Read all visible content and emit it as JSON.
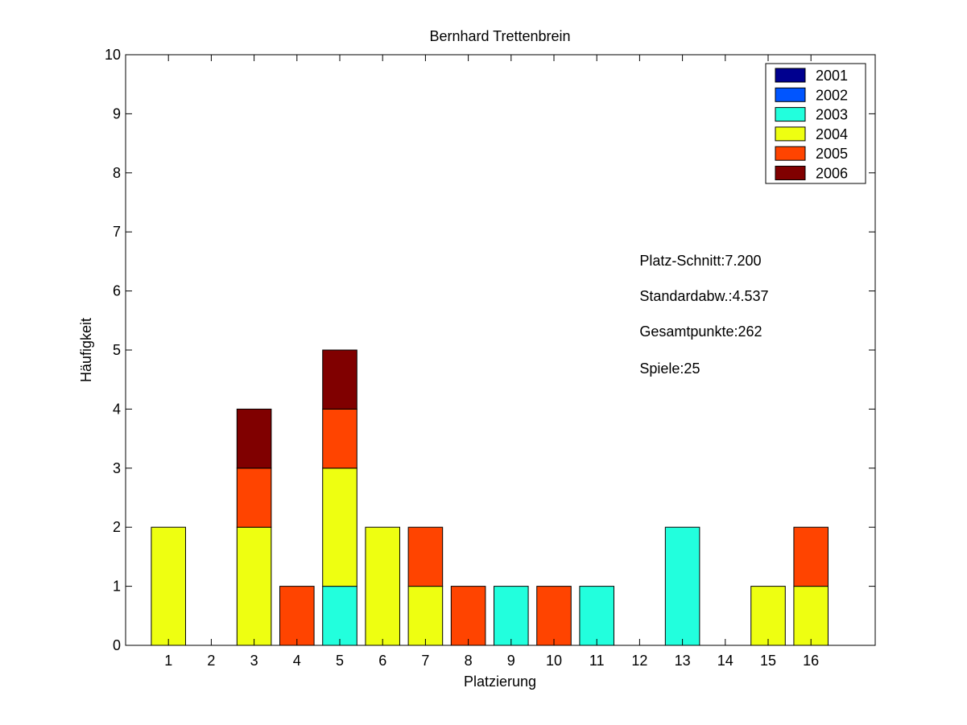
{
  "chart_data": {
    "type": "bar",
    "stacked": true,
    "title": "Bernhard Trettenbrein",
    "xlabel": "Platzierung",
    "ylabel": "Häufigkeit",
    "categories": [
      "1",
      "2",
      "3",
      "4",
      "5",
      "6",
      "7",
      "8",
      "9",
      "10",
      "11",
      "12",
      "13",
      "14",
      "15",
      "16"
    ],
    "xlim": [
      0,
      17.5
    ],
    "ylim": [
      0,
      10
    ],
    "yticks": [
      0,
      1,
      2,
      3,
      4,
      5,
      6,
      7,
      8,
      9,
      10
    ],
    "grid": false,
    "legend_position": "top-right",
    "series": [
      {
        "name": "2001",
        "color": "#00008f",
        "values": [
          0,
          0,
          0,
          0,
          0,
          0,
          0,
          0,
          0,
          0,
          0,
          0,
          0,
          0,
          0,
          0
        ]
      },
      {
        "name": "2002",
        "color": "#0055ff",
        "values": [
          0,
          0,
          0,
          0,
          0,
          0,
          0,
          0,
          0,
          0,
          0,
          0,
          0,
          0,
          0,
          0
        ]
      },
      {
        "name": "2003",
        "color": "#22ffdd",
        "values": [
          0,
          0,
          0,
          0,
          1,
          0,
          0,
          0,
          1,
          0,
          1,
          0,
          2,
          0,
          0,
          0
        ]
      },
      {
        "name": "2004",
        "color": "#eeff11",
        "values": [
          2,
          0,
          2,
          0,
          2,
          2,
          1,
          0,
          0,
          0,
          0,
          0,
          0,
          0,
          1,
          1
        ]
      },
      {
        "name": "2005",
        "color": "#ff4400",
        "values": [
          0,
          0,
          1,
          1,
          1,
          0,
          1,
          1,
          0,
          1,
          0,
          0,
          0,
          0,
          0,
          1
        ]
      },
      {
        "name": "2006",
        "color": "#800000",
        "values": [
          0,
          0,
          1,
          0,
          1,
          0,
          0,
          0,
          0,
          0,
          0,
          0,
          0,
          0,
          0,
          0
        ]
      }
    ],
    "annotations": [
      "Platz-Schnitt:7.200",
      "Standardabw.:4.537",
      "Gesamtpunkte:262",
      "Spiele:25"
    ]
  }
}
